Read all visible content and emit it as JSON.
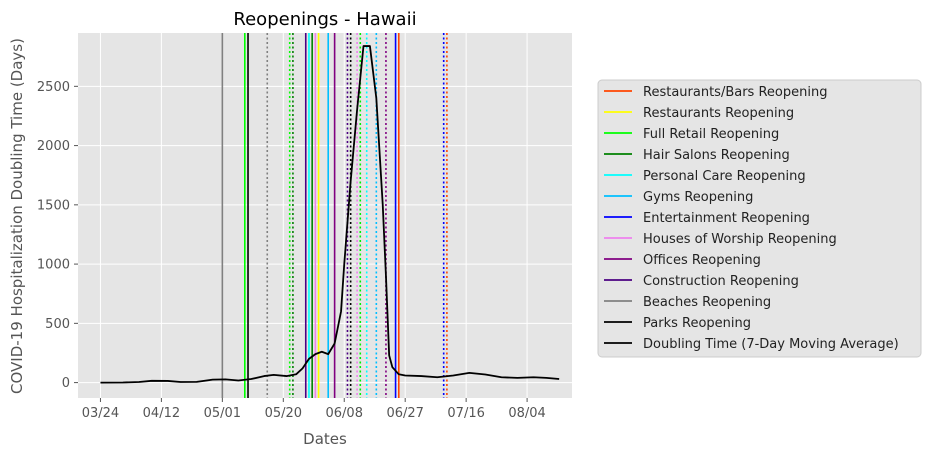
{
  "chart_data": {
    "type": "line",
    "title": "Reopenings - Hawaii",
    "xlabel": "Dates",
    "ylabel": "COVID-19 Hospitalization Doubling Time (Days)",
    "x_ticks": [
      "03/24",
      "04/12",
      "05/01",
      "05/20",
      "06/08",
      "06/27",
      "07/16",
      "08/04"
    ],
    "x_range": [
      "2020-03-17",
      "2020-08-18"
    ],
    "y_ticks": [
      0,
      500,
      1000,
      1500,
      2000,
      2500
    ],
    "ylim": [
      -130,
      2950
    ],
    "grid": true,
    "legend_placement": "right",
    "series": [
      {
        "name": "Doubling Time (7-Day Moving Average)",
        "color": "#000000",
        "points": [
          [
            "2020-03-24",
            0
          ],
          [
            "2020-03-31",
            1
          ],
          [
            "2020-04-05",
            5
          ],
          [
            "2020-04-09",
            15
          ],
          [
            "2020-04-14",
            14
          ],
          [
            "2020-04-18",
            5
          ],
          [
            "2020-04-23",
            6
          ],
          [
            "2020-04-28",
            25
          ],
          [
            "2020-05-02",
            27
          ],
          [
            "2020-05-06",
            18
          ],
          [
            "2020-05-10",
            30
          ],
          [
            "2020-05-14",
            55
          ],
          [
            "2020-05-17",
            65
          ],
          [
            "2020-05-21",
            55
          ],
          [
            "2020-05-24",
            70
          ],
          [
            "2020-05-26",
            120
          ],
          [
            "2020-05-28",
            200
          ],
          [
            "2020-05-30",
            240
          ],
          [
            "2020-06-01",
            260
          ],
          [
            "2020-06-03",
            240
          ],
          [
            "2020-06-05",
            330
          ],
          [
            "2020-06-07",
            600
          ],
          [
            "2020-06-08",
            1000
          ],
          [
            "2020-06-10",
            1700
          ],
          [
            "2020-06-12",
            2300
          ],
          [
            "2020-06-14",
            2840
          ],
          [
            "2020-06-16",
            2840
          ],
          [
            "2020-06-18",
            2400
          ],
          [
            "2020-06-20",
            1500
          ],
          [
            "2020-06-21",
            900
          ],
          [
            "2020-06-22",
            230
          ],
          [
            "2020-06-23",
            130
          ],
          [
            "2020-06-25",
            70
          ],
          [
            "2020-06-27",
            60
          ],
          [
            "2020-07-02",
            55
          ],
          [
            "2020-07-07",
            45
          ],
          [
            "2020-07-12",
            60
          ],
          [
            "2020-07-17",
            82
          ],
          [
            "2020-07-22",
            68
          ],
          [
            "2020-07-27",
            45
          ],
          [
            "2020-08-01",
            40
          ],
          [
            "2020-08-06",
            45
          ],
          [
            "2020-08-10",
            40
          ],
          [
            "2020-08-14",
            30
          ]
        ]
      }
    ],
    "reopening_lines": [
      {
        "date": "2020-06-25",
        "color": "#ff4500",
        "style": "solid"
      },
      {
        "date": "2020-07-10",
        "color": "#ff4500",
        "style": "dotted"
      },
      {
        "date": "2020-05-31",
        "color": "#ffff00",
        "style": "solid"
      },
      {
        "date": "2020-05-08",
        "color": "#00ff00",
        "style": "solid"
      },
      {
        "date": "2020-05-22",
        "color": "#00ff00",
        "style": "dotted"
      },
      {
        "date": "2020-06-13",
        "color": "#00ee00",
        "style": "dotted"
      },
      {
        "date": "2020-05-23",
        "color": "#008000",
        "style": "dotted"
      },
      {
        "date": "2020-05-29",
        "color": "#008000",
        "style": "solid"
      },
      {
        "date": "2020-05-28",
        "color": "#00ffff",
        "style": "solid"
      },
      {
        "date": "2020-06-15",
        "color": "#00ffff",
        "style": "dotted"
      },
      {
        "date": "2020-06-03",
        "color": "#00bfff",
        "style": "solid"
      },
      {
        "date": "2020-06-18",
        "color": "#00bfff",
        "style": "dotted"
      },
      {
        "date": "2020-06-24",
        "color": "#0000ff",
        "style": "solid"
      },
      {
        "date": "2020-07-09",
        "color": "#0000ff",
        "style": "dotted"
      },
      {
        "date": "2020-05-30",
        "color": "#ee82ee",
        "style": "solid"
      },
      {
        "date": "2020-06-12",
        "color": "#ee82ee",
        "style": "dotted"
      },
      {
        "date": "2020-06-05",
        "color": "#800080",
        "style": "solid"
      },
      {
        "date": "2020-06-21",
        "color": "#800080",
        "style": "dotted"
      },
      {
        "date": "2020-05-27",
        "color": "#4b0082",
        "style": "solid"
      },
      {
        "date": "2020-06-09",
        "color": "#4b0082",
        "style": "dotted"
      },
      {
        "date": "2020-05-01",
        "color": "#808080",
        "style": "solid"
      },
      {
        "date": "2020-05-15",
        "color": "#808080",
        "style": "dotted"
      },
      {
        "date": "2020-05-09",
        "color": "#000000",
        "style": "solid"
      },
      {
        "date": "2020-06-10",
        "color": "#000000",
        "style": "dotted"
      }
    ],
    "legend": [
      {
        "label": "Restaurants/Bars Reopening",
        "color": "#ff4500"
      },
      {
        "label": "Restaurants Reopening",
        "color": "#ffff00"
      },
      {
        "label": "Full Retail Reopening",
        "color": "#00ff00"
      },
      {
        "label": "Hair Salons Reopening",
        "color": "#008000"
      },
      {
        "label": "Personal Care Reopening",
        "color": "#00ffff"
      },
      {
        "label": "Gyms Reopening",
        "color": "#00bfff"
      },
      {
        "label": "Entertainment Reopening",
        "color": "#0000ff"
      },
      {
        "label": "Houses of Worship Reopening",
        "color": "#ee82ee"
      },
      {
        "label": "Offices Reopening",
        "color": "#800080"
      },
      {
        "label": "Construction Reopening",
        "color": "#4b0082"
      },
      {
        "label": "Beaches Reopening",
        "color": "#808080"
      },
      {
        "label": "Parks Reopening",
        "color": "#000000"
      },
      {
        "label": "Doubling Time (7-Day Moving Average)",
        "color": "#000000"
      }
    ]
  }
}
